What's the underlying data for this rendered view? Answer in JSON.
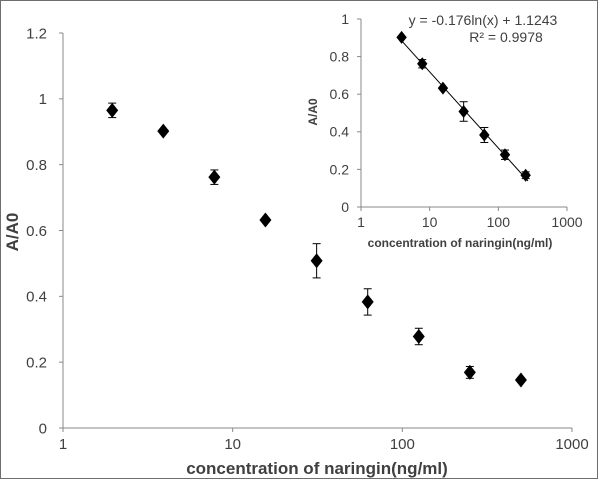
{
  "chart_data": [
    {
      "type": "scatter",
      "xlabel": "concentration of naringin(ng/ml)",
      "ylabel": "A/A0",
      "xscale": "log",
      "xlim": [
        1,
        1000
      ],
      "ylim": [
        0,
        1.2
      ],
      "xticks": [
        "1",
        "10",
        "100",
        "1000"
      ],
      "yticks": [
        "0",
        "0.2",
        "0.4",
        "0.6",
        "0.8",
        "1",
        "1.2"
      ],
      "grid": false,
      "marker": "diamond",
      "series": [
        {
          "x": [
            1.95,
            3.9,
            7.8,
            15.6,
            31.25,
            62.5,
            125,
            250,
            500
          ],
          "y": [
            0.965,
            0.902,
            0.762,
            0.632,
            0.508,
            0.383,
            0.278,
            0.169,
            0.146
          ],
          "error": [
            0.022,
            0.0,
            0.022,
            0.0,
            0.052,
            0.04,
            0.025,
            0.018,
            0.0
          ]
        }
      ]
    },
    {
      "type": "scatter",
      "inset": true,
      "xlabel": "concentration of naringin(ng/ml)",
      "ylabel": "A/A0",
      "xscale": "log",
      "xlim": [
        1,
        1000
      ],
      "ylim": [
        0,
        1
      ],
      "xticks": [
        "1",
        "10",
        "100",
        "1000"
      ],
      "yticks": [
        "0",
        "0.2",
        "0.4",
        "0.6",
        "0.8",
        "1"
      ],
      "grid": false,
      "marker": "diamond",
      "series": [
        {
          "x": [
            3.9,
            7.8,
            15.6,
            31.25,
            62.5,
            125,
            250
          ],
          "y": [
            0.902,
            0.762,
            0.632,
            0.508,
            0.383,
            0.278,
            0.169
          ],
          "error": [
            0.0,
            0.022,
            0.0,
            0.052,
            0.04,
            0.025,
            0.018
          ]
        }
      ],
      "fit": {
        "slope": -0.176,
        "intercept": 1.1243
      },
      "equation": "y = -0.176ln(x) + 1.1243",
      "r2": "R² = 0.9978"
    }
  ]
}
